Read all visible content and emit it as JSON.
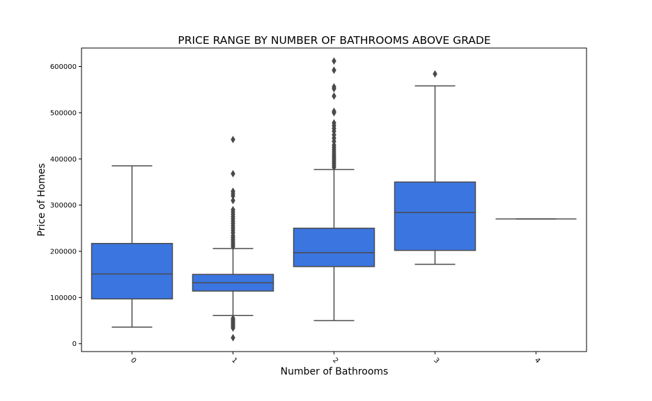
{
  "chart_data": {
    "type": "box",
    "title": "PRICE RANGE BY NUMBER OF BATHROOMS ABOVE GRADE",
    "xlabel": "Number of Bathrooms",
    "ylabel": "Price of Homes",
    "categories": [
      "0",
      "1",
      "2",
      "3",
      "4"
    ],
    "ylim": [
      -17000,
      640000
    ],
    "yticks": [
      0,
      100000,
      200000,
      300000,
      400000,
      500000,
      600000
    ],
    "ytick_labels": [
      "0",
      "100000",
      "200000",
      "300000",
      "400000",
      "500000",
      "600000"
    ],
    "xtick_rotation": 45,
    "grid": false,
    "box_color": "#3b75e0",
    "line_color": "#4a4a4a",
    "boxes": [
      {
        "category": "0",
        "whisker_low": 36000,
        "q1": 97000,
        "median": 151000,
        "q3": 217000,
        "whisker_high": 385000,
        "outliers": []
      },
      {
        "category": "1",
        "whisker_low": 61000,
        "q1": 114000,
        "median": 132000,
        "q3": 150000,
        "whisker_high": 206000,
        "outliers": [
          13000,
          34000,
          37000,
          40000,
          43000,
          46000,
          49000,
          52000,
          55000,
          210000,
          214000,
          218000,
          222000,
          226000,
          230000,
          234000,
          240000,
          245000,
          250000,
          255000,
          260000,
          265000,
          270000,
          275000,
          280000,
          285000,
          290000,
          310000,
          320000,
          325000,
          330000,
          368000,
          442000
        ]
      },
      {
        "category": "2",
        "whisker_low": 50000,
        "q1": 167000,
        "median": 197000,
        "q3": 250000,
        "whisker_high": 377000,
        "outliers": [
          382000,
          386000,
          390000,
          394000,
          398000,
          402000,
          406000,
          410000,
          415000,
          420000,
          425000,
          430000,
          438000,
          445000,
          452000,
          460000,
          466000,
          472000,
          478000,
          500000,
          503000,
          536000,
          552000,
          556000,
          592000,
          612000
        ]
      },
      {
        "category": "3",
        "whisker_low": 172000,
        "q1": 202000,
        "median": 284000,
        "q3": 350000,
        "whisker_high": 558000,
        "outliers": [
          584000
        ]
      },
      {
        "category": "4",
        "whisker_low": 270000,
        "q1": 270000,
        "median": 270000,
        "q3": 270000,
        "whisker_high": 270000,
        "outliers": []
      }
    ]
  }
}
